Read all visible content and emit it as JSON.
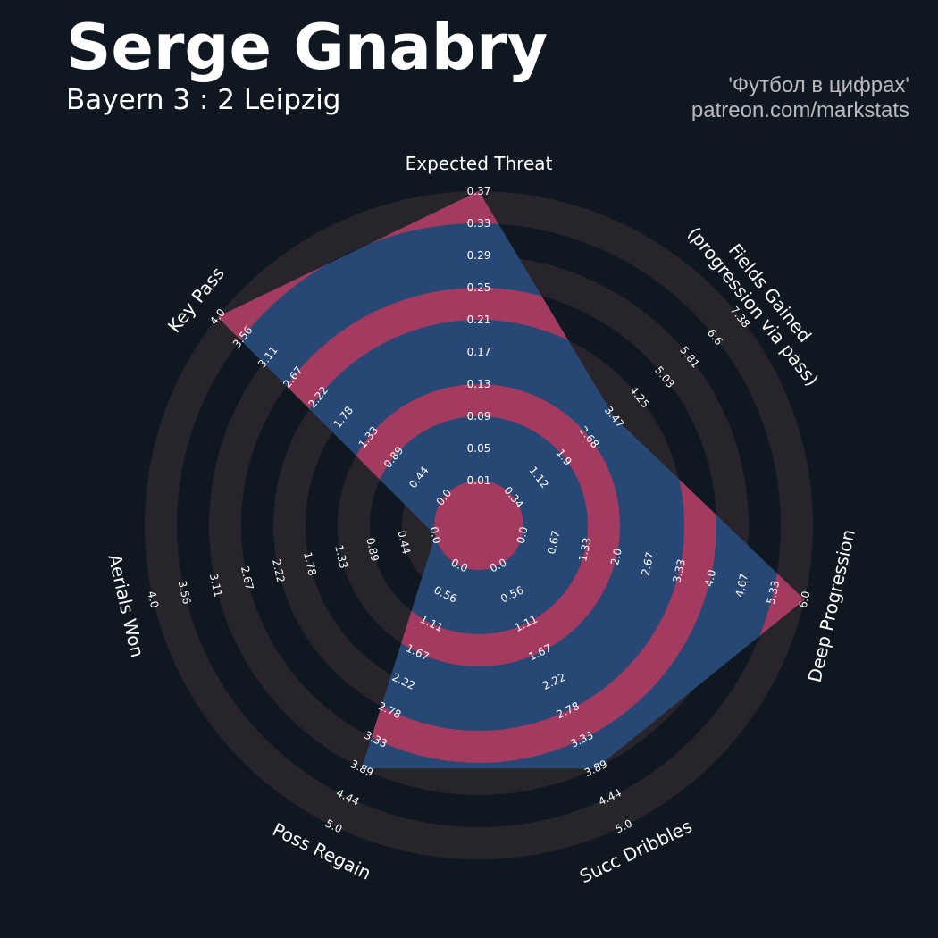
{
  "header": {
    "title": "Serge Gnabry",
    "subtitle": "Bayern 3 : 2 Leipzig",
    "credit_line1": "'Футбол в цифрах'",
    "credit_line2": "patreon.com/markstats"
  },
  "colors": {
    "background": "#0f1720",
    "ring_outer": "#28242b",
    "ring_inner": "#0f1720",
    "polygon_blue": "#274874",
    "polygon_pink": "#a33a5f",
    "text": "#ffffff",
    "credit_text": "#b9b9bd"
  },
  "chart_data": {
    "type": "radar",
    "axes": [
      {
        "label": "Expected Threat",
        "value": 0.37,
        "min": 0.01,
        "max": 0.37,
        "ticks": [
          "0.01",
          "0.05",
          "0.09",
          "0.13",
          "0.17",
          "0.21",
          "0.25",
          "0.29",
          "0.33",
          "0.37"
        ]
      },
      {
        "label": "Fields Gained\n(progression via pass)",
        "value": 3.47,
        "min": 0.34,
        "max": 7.38,
        "ticks": [
          "0.34",
          "1.12",
          "1.9",
          "2.68",
          "3.47",
          "4.25",
          "5.03",
          "5.81",
          "6.6",
          "7.38"
        ]
      },
      {
        "label": "Deep Progression",
        "value": 6.0,
        "min": 0.0,
        "max": 6.0,
        "ticks": [
          "0.0",
          "0.67",
          "1.33",
          "2.0",
          "2.67",
          "3.33",
          "4.0",
          "4.67",
          "5.33",
          "6.0"
        ]
      },
      {
        "label": "Succ Dribbles",
        "value": 3.89,
        "min": 0.0,
        "max": 5.0,
        "ticks": [
          "0.0",
          "0.56",
          "1.11",
          "1.67",
          "2.22",
          "2.78",
          "3.33",
          "3.89",
          "4.44",
          "5.0"
        ]
      },
      {
        "label": "Poss Regain",
        "value": 3.89,
        "min": 0.0,
        "max": 5.0,
        "ticks": [
          "0.0",
          "0.56",
          "1.11",
          "1.67",
          "2.22",
          "2.78",
          "3.33",
          "3.89",
          "4.44",
          "5.0"
        ]
      },
      {
        "label": "Aerials Won",
        "value": 0.0,
        "min": 0.0,
        "max": 4.0,
        "ticks": [
          "0.0",
          "0.44",
          "0.89",
          "1.33",
          "1.78",
          "2.22",
          "2.67",
          "3.11",
          "3.56",
          "4.0"
        ]
      },
      {
        "label": "Key Pass",
        "value": 4.0,
        "min": 0.0,
        "max": 4.0,
        "ticks": [
          "0.0",
          "0.44",
          "0.89",
          "1.33",
          "1.78",
          "2.22",
          "2.67",
          "3.11",
          "3.56",
          "4.0"
        ]
      }
    ]
  }
}
